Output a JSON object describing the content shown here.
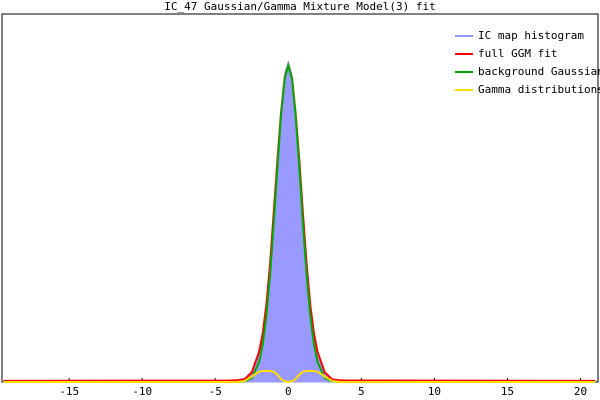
{
  "chart_data": {
    "type": "line",
    "title": "IC_47 Gaussian/Gamma Mixture Model(3) fit",
    "x": [
      -19.5,
      -4,
      -3.5,
      -3,
      -2.5,
      -2,
      -1.75,
      -1.5,
      -1.25,
      -1,
      -0.75,
      -0.5,
      -0.25,
      0,
      0.25,
      0.5,
      0.75,
      1,
      1.25,
      1.5,
      1.75,
      2,
      2.5,
      3,
      3.5,
      4,
      21
    ],
    "series": [
      {
        "name": "IC map histogram",
        "color": "#9999ff",
        "area": true,
        "values": [
          0.003,
          0.004,
          0.006,
          0.01,
          0.03,
          0.085,
          0.13,
          0.215,
          0.33,
          0.47,
          0.61,
          0.74,
          0.84,
          0.87,
          0.835,
          0.725,
          0.6,
          0.45,
          0.315,
          0.205,
          0.128,
          0.08,
          0.028,
          0.009,
          0.005,
          0.004,
          0.003
        ]
      },
      {
        "name": "full GGM fit",
        "color": "#ff0000",
        "values": [
          0.003,
          0.004,
          0.005,
          0.007,
          0.026,
          0.082,
          0.133,
          0.211,
          0.322,
          0.459,
          0.603,
          0.731,
          0.826,
          0.86,
          0.826,
          0.731,
          0.603,
          0.459,
          0.322,
          0.211,
          0.133,
          0.082,
          0.026,
          0.007,
          0.005,
          0.004,
          0.003
        ]
      },
      {
        "name": "background Gaussian",
        "color": "#00aa00",
        "values": [
          0,
          0,
          0,
          0.002,
          0.011,
          0.054,
          0.103,
          0.181,
          0.292,
          0.431,
          0.583,
          0.723,
          0.824,
          0.86,
          0.824,
          0.723,
          0.583,
          0.431,
          0.292,
          0.181,
          0.103,
          0.054,
          0.011,
          0.002,
          0,
          0,
          0
        ]
      },
      {
        "name": "Gamma distributions",
        "color": "#ffdd00",
        "values": [
          0,
          0,
          0,
          0.003,
          0.015,
          0.028,
          0.03,
          0.03,
          0.03,
          0.028,
          0.02,
          0.008,
          0.002,
          0,
          0.002,
          0.008,
          0.02,
          0.028,
          0.03,
          0.03,
          0.03,
          0.028,
          0.015,
          0.003,
          0,
          0,
          0
        ]
      }
    ],
    "xlim": [
      -19.6,
      21.2
    ],
    "xticks": [
      -15,
      -10,
      -5,
      0,
      5,
      10,
      15,
      20
    ],
    "ylim": [
      0,
      1
    ],
    "legend": "top-right"
  }
}
